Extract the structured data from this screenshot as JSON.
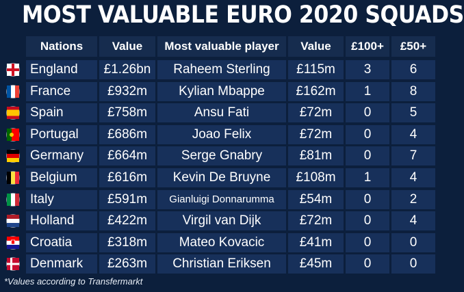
{
  "title": "MOST VALUABLE EURO 2020 SQUADS",
  "headers": {
    "nations": "Nations",
    "value": "Value",
    "player": "Most valuable player",
    "player_value": "Value",
    "over100": "£100+",
    "over50": "£50+"
  },
  "rows": [
    {
      "flag": "england-flag-icon",
      "nation": "England",
      "value": "£1.26bn",
      "player": "Raheem Sterling",
      "player_value": "£115m",
      "over100": "3",
      "over50": "6"
    },
    {
      "flag": "france-flag-icon",
      "nation": "France",
      "value": "£932m",
      "player": "Kylian Mbappe",
      "player_value": "£162m",
      "over100": "1",
      "over50": "8"
    },
    {
      "flag": "spain-flag-icon",
      "nation": "Spain",
      "value": "£758m",
      "player": "Ansu Fati",
      "player_value": "£72m",
      "over100": "0",
      "over50": "5"
    },
    {
      "flag": "portugal-flag-icon",
      "nation": "Portugal",
      "value": "£686m",
      "player": "Joao Felix",
      "player_value": "£72m",
      "over100": "0",
      "over50": "4"
    },
    {
      "flag": "germany-flag-icon",
      "nation": "Germany",
      "value": "£664m",
      "player": "Serge Gnabry",
      "player_value": "£81m",
      "over100": "0",
      "over50": "7"
    },
    {
      "flag": "belgium-flag-icon",
      "nation": "Belgium",
      "value": "£616m",
      "player": "Kevin De Bruyne",
      "player_value": "£108m",
      "over100": "1",
      "over50": "4"
    },
    {
      "flag": "italy-flag-icon",
      "nation": "Italy",
      "value": "£591m",
      "player": "Gianluigi Donnarumma",
      "player_value": "£54m",
      "over100": "0",
      "over50": "2"
    },
    {
      "flag": "netherlands-flag-icon",
      "nation": "Holland",
      "value": "£422m",
      "player": "Virgil van Dijk",
      "player_value": "£72m",
      "over100": "0",
      "over50": "4"
    },
    {
      "flag": "croatia-flag-icon",
      "nation": "Croatia",
      "value": "£318m",
      "player": "Mateo Kovacic",
      "player_value": "£41m",
      "over100": "0",
      "over50": "0"
    },
    {
      "flag": "denmark-flag-icon",
      "nation": "Denmark",
      "value": "£263m",
      "player": "Christian Eriksen",
      "player_value": "£45m",
      "over100": "0",
      "over50": "0"
    }
  ],
  "footnote": "*Values according to Transfermarkt"
}
